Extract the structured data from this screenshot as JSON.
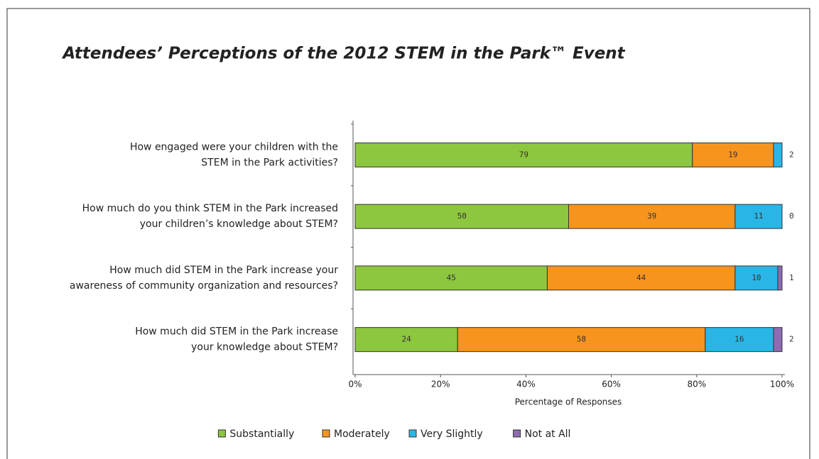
{
  "chart_data": {
    "type": "stacked-barh",
    "title": "Attendees’ Perceptions of the 2012 STEM in the Park™ Event",
    "categories": [
      [
        "How engaged were your children with the",
        "STEM in the Park activities?"
      ],
      [
        "How much do you think STEM in the Park increased",
        "your children’s knowledge about STEM?"
      ],
      [
        "How much did STEM in the Park increase your",
        "awareness of community organization and resources?"
      ],
      [
        "How much did STEM in the Park increase",
        "your knowledge about STEM?"
      ]
    ],
    "series": [
      {
        "name": "Substantially",
        "color": "#8dc63f",
        "values": [
          79,
          50,
          45,
          24
        ]
      },
      {
        "name": "Moderately",
        "color": "#f7941d",
        "values": [
          19,
          39,
          44,
          58
        ]
      },
      {
        "name": "Very Slightly",
        "color": "#29b6e6",
        "values": [
          2,
          11,
          10,
          16
        ]
      },
      {
        "name": "Not at All",
        "color": "#8e6bb3",
        "values": [
          null,
          0,
          1,
          2
        ]
      }
    ],
    "xlabel": "Percentage of Responses",
    "xlim": [
      0,
      100
    ],
    "xticks": [
      {
        "value": 0,
        "label": "0%"
      },
      {
        "value": 20,
        "label": "20%"
      },
      {
        "value": 40,
        "label": "40%"
      },
      {
        "value": 60,
        "label": "60%"
      },
      {
        "value": 80,
        "label": "80%"
      },
      {
        "value": 100,
        "label": "100%"
      }
    ],
    "legend": "bottom"
  }
}
